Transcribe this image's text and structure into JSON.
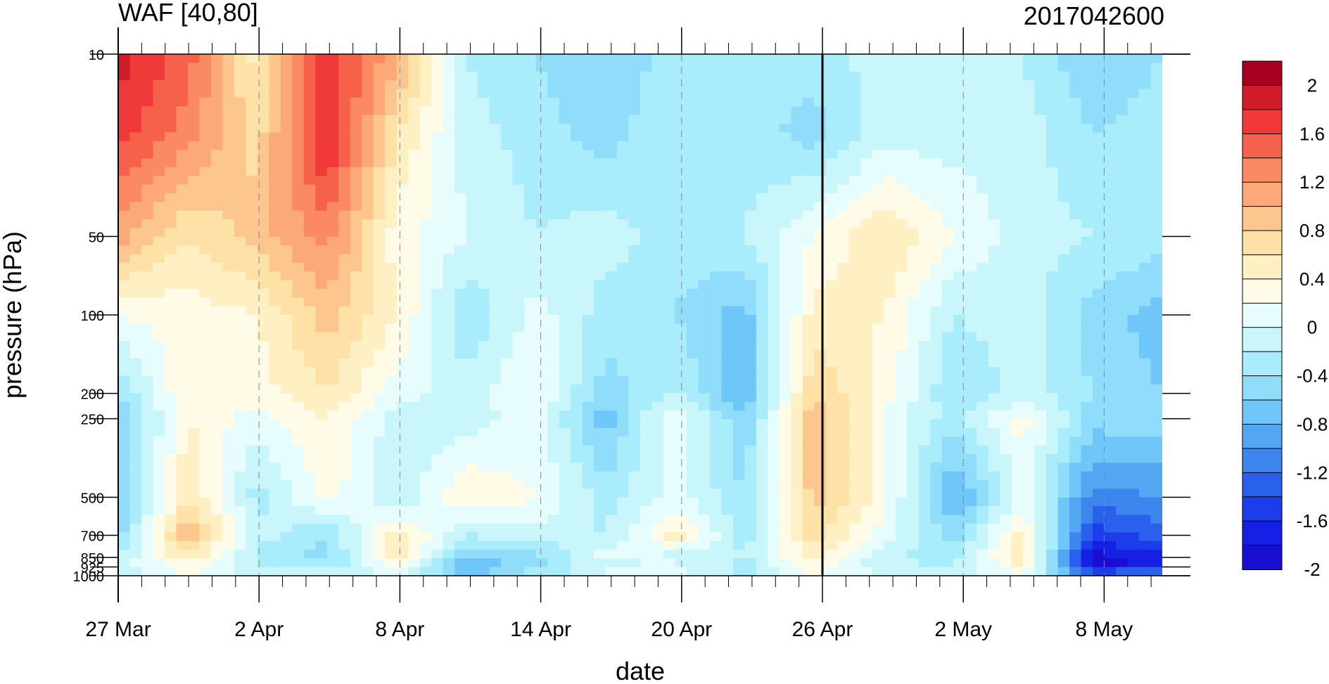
{
  "chart_data": {
    "type": "heatmap",
    "title_left": "WAF [40,80]",
    "title_right": "2017042600",
    "xlabel": "date",
    "ylabel": "pressure (hPa)",
    "x_ticks": [
      "27 Mar",
      "2 Apr",
      "8 Apr",
      "14 Apr",
      "20 Apr",
      "26 Apr",
      "2 May",
      "8 May"
    ],
    "y_ticks": [
      "10",
      "50",
      "100",
      "200",
      "250",
      "500",
      "700",
      "850",
      "925",
      "1000"
    ],
    "y_scale": "log",
    "ylim": [
      1000,
      10
    ],
    "x_range_days": [
      0,
      45
    ],
    "current_date": "26 Apr",
    "colorbar": {
      "labels": [
        "2",
        "1.6",
        "1.2",
        "0.8",
        "0.4",
        "0",
        "-0.4",
        "-0.8",
        "-1.2",
        "-1.6",
        "-2"
      ],
      "colors": [
        "#a50021",
        "#d01c2a",
        "#f03a3a",
        "#f5614a",
        "#fb8a62",
        "#fca877",
        "#fdc68e",
        "#fde1a7",
        "#fef0c2",
        "#fffbe6",
        "#e7fdfd",
        "#c8f6fb",
        "#a9ecfb",
        "#8fdcfb",
        "#6fc6f8",
        "#53a7f2",
        "#3c86ee",
        "#2a61ec",
        "#1d3cea",
        "#1520e4",
        "#1a0fd0"
      ]
    },
    "series": [
      {
        "levels_hpa": [
          10,
          20,
          50,
          100,
          200,
          250,
          500,
          700,
          850,
          925,
          1000
        ],
        "days": [
          0,
          3,
          6,
          9,
          12,
          15,
          18,
          21,
          24,
          27,
          30,
          33,
          36,
          39,
          42,
          45
        ],
        "values": [
          [
            1.8,
            1.4,
            0.4,
            1.6,
            1.0,
            -0.3,
            -0.5,
            -0.7,
            -0.4,
            -0.3,
            -0.4,
            -0.2,
            -0.3,
            -0.3,
            -0.7,
            -0.5
          ],
          [
            1.6,
            1.2,
            0.6,
            1.8,
            0.5,
            -0.2,
            -0.4,
            -0.6,
            -0.3,
            -0.4,
            -0.6,
            -0.2,
            -0.2,
            -0.2,
            -0.5,
            -0.4
          ],
          [
            1.0,
            0.5,
            0.8,
            1.2,
            0.2,
            -0.1,
            -0.3,
            -0.2,
            -0.4,
            -0.3,
            0.1,
            0.5,
            0.1,
            -0.2,
            -0.3,
            -0.4
          ],
          [
            0.1,
            0.2,
            0.3,
            0.8,
            0.3,
            -0.5,
            0.0,
            -0.4,
            -0.5,
            -0.8,
            0.4,
            0.3,
            -0.3,
            -0.2,
            -0.6,
            -0.8
          ],
          [
            -0.5,
            0.3,
            0.2,
            0.5,
            0.0,
            -0.2,
            0.1,
            -0.6,
            -0.3,
            -0.9,
            0.7,
            0.2,
            -0.5,
            -0.2,
            -0.5,
            -0.7
          ],
          [
            -0.7,
            0.3,
            0.0,
            0.3,
            -0.2,
            -0.2,
            0.0,
            -0.8,
            0.1,
            -0.7,
            0.9,
            0.1,
            -0.4,
            0.2,
            -0.6,
            -0.6
          ],
          [
            -0.8,
            0.5,
            -0.4,
            0.2,
            -0.3,
            0.3,
            0.1,
            -0.4,
            0.0,
            -0.5,
            0.8,
            0.2,
            -1.0,
            0.0,
            -1.2,
            -1.1
          ],
          [
            -0.6,
            0.9,
            -0.2,
            -0.5,
            0.4,
            -0.3,
            -0.2,
            -0.3,
            0.4,
            -0.4,
            0.6,
            0.0,
            -0.6,
            0.4,
            -1.6,
            -1.4
          ],
          [
            -0.3,
            0.5,
            -0.4,
            -0.6,
            0.5,
            -0.7,
            -0.6,
            0.0,
            -0.2,
            -0.3,
            0.4,
            -0.3,
            -0.4,
            0.5,
            -2.0,
            -1.8
          ],
          [
            -0.2,
            0.2,
            -0.3,
            -0.4,
            0.0,
            -1.0,
            -0.5,
            -0.2,
            0.0,
            -0.4,
            0.2,
            -0.2,
            -0.3,
            0.3,
            -2.1,
            -1.6
          ],
          [
            -0.2,
            0.1,
            -0.2,
            -0.2,
            0.0,
            -0.6,
            -0.4,
            0.0,
            -0.1,
            -0.3,
            0.1,
            -0.1,
            -0.2,
            0.1,
            -1.2,
            -1.0
          ]
        ]
      }
    ]
  }
}
